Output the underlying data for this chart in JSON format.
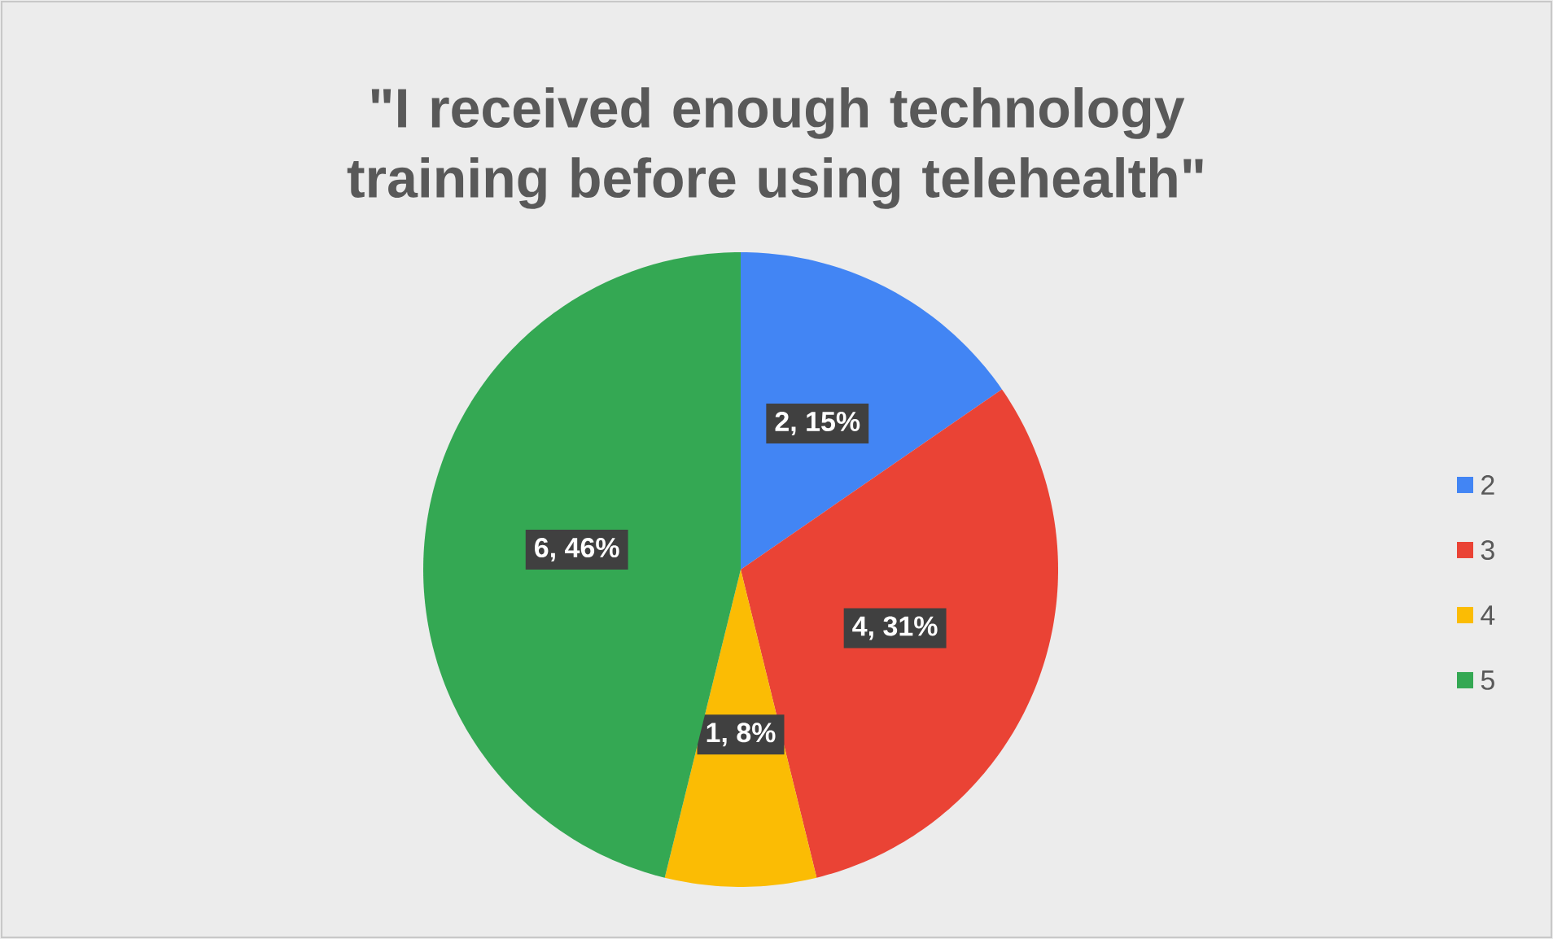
{
  "chart_data": {
    "type": "pie",
    "title": "\"I received enough technology training before using telehealth\"",
    "categories": [
      "2",
      "3",
      "4",
      "5"
    ],
    "values": [
      2,
      4,
      1,
      6
    ],
    "colors": [
      "#4285f4",
      "#ea4335",
      "#fbbc04",
      "#34a853"
    ],
    "value_labels": [
      "2, 15%",
      "4, 31%",
      "1, 8%",
      "6, 46%"
    ],
    "legend": "right"
  }
}
